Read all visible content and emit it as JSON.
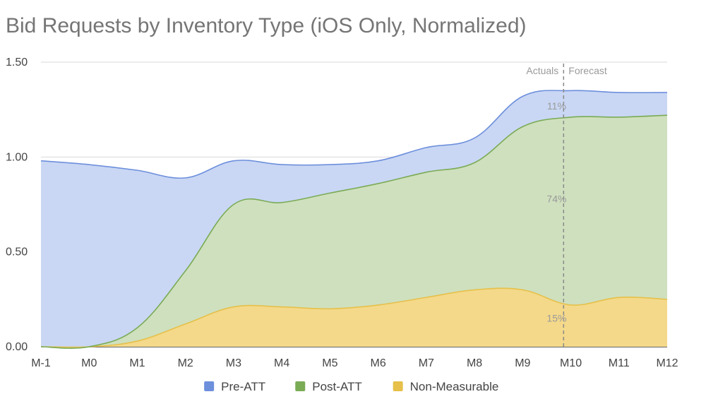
{
  "chart_data": {
    "type": "area",
    "title": "Bid Requests by Inventory Type (iOS Only, Normalized)",
    "xlabel": "",
    "ylabel": "",
    "categories": [
      "M-1",
      "M0",
      "M1",
      "M2",
      "M3",
      "M4",
      "M5",
      "M6",
      "M7",
      "M8",
      "M9",
      "M10",
      "M11",
      "M12"
    ],
    "ylim": [
      0,
      1.5
    ],
    "y_ticks": [
      "0.00",
      "0.50",
      "1.00",
      "1.50"
    ],
    "y_tick_values": [
      0,
      0.5,
      1.0,
      1.5
    ],
    "stacked": true,
    "series": [
      {
        "name": "Non-Measurable",
        "color": "#f4d98a",
        "line_color": "#e6c04a",
        "values": [
          0.0,
          0.0,
          0.03,
          0.12,
          0.21,
          0.21,
          0.2,
          0.22,
          0.26,
          0.3,
          0.3,
          0.22,
          0.26,
          0.25
        ]
      },
      {
        "name": "Post-ATT",
        "color": "#cfe0be",
        "line_color": "#7aab55",
        "values": [
          0.0,
          0.0,
          0.07,
          0.28,
          0.54,
          0.55,
          0.61,
          0.64,
          0.66,
          0.67,
          0.86,
          0.99,
          0.95,
          0.97
        ]
      },
      {
        "name": "Pre-ATT",
        "color": "#c9d7f4",
        "line_color": "#6d8fdc",
        "values": [
          0.98,
          0.96,
          0.83,
          0.49,
          0.23,
          0.2,
          0.15,
          0.12,
          0.13,
          0.13,
          0.16,
          0.14,
          0.13,
          0.12
        ]
      }
    ],
    "annotations": {
      "divider_category_index": 10.85,
      "actuals_label": "Actuals",
      "forecast_label": "Forecast",
      "percent_labels": [
        {
          "text": "11%",
          "x_index": 10.5,
          "y": 1.27
        },
        {
          "text": "74%",
          "x_index": 10.5,
          "y": 0.78
        },
        {
          "text": "15%",
          "x_index": 10.5,
          "y": 0.15
        }
      ]
    },
    "legend": {
      "position": "bottom",
      "items": [
        {
          "label": "Pre-ATT",
          "color": "#6d8fdc"
        },
        {
          "label": "Post-ATT",
          "color": "#7aab55"
        },
        {
          "label": "Non-Measurable",
          "color": "#e6c04a"
        }
      ]
    },
    "grid": true
  }
}
